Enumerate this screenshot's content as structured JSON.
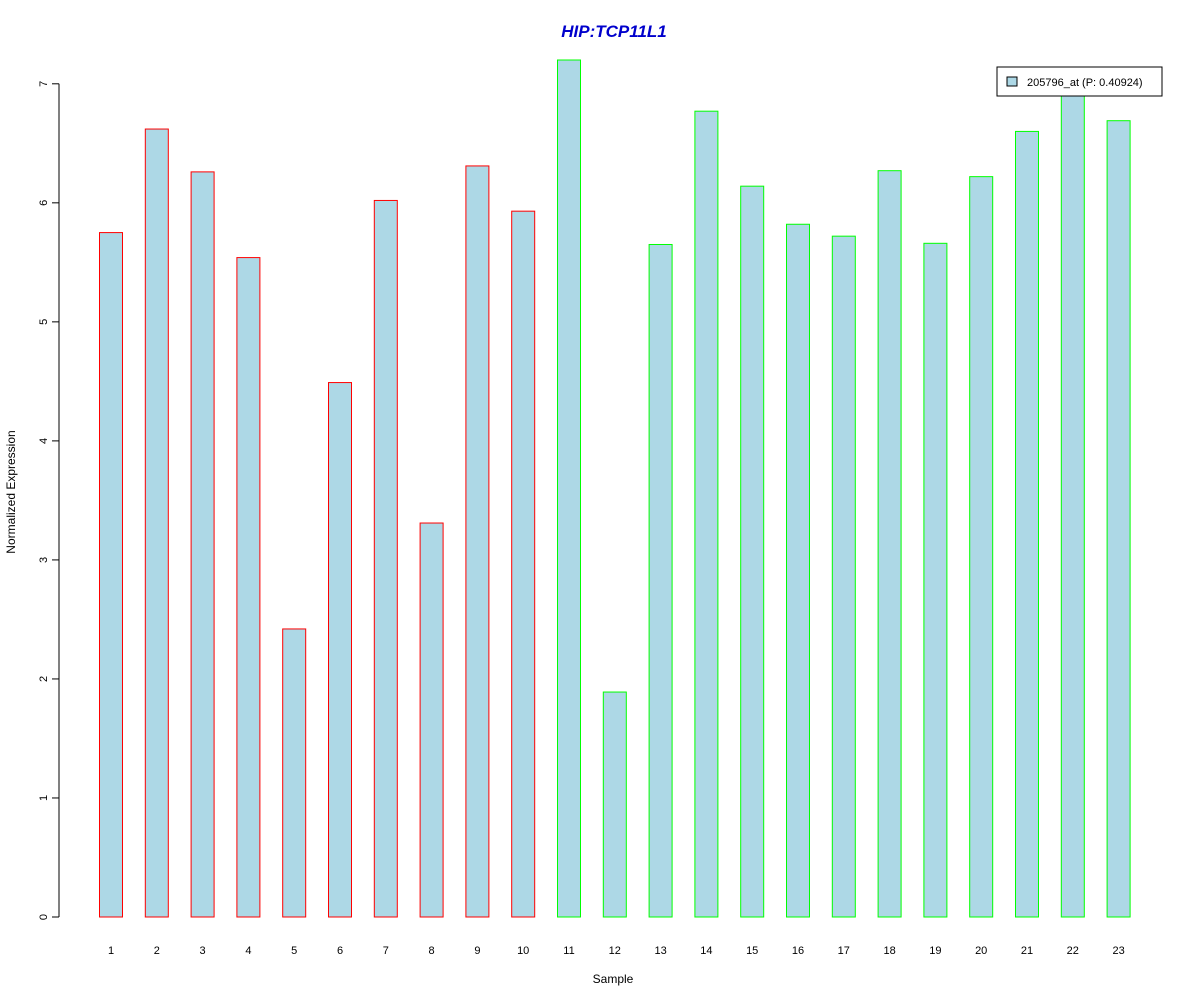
{
  "chart_data": {
    "type": "bar",
    "title": "HIP:TCP11L1",
    "xlabel": "Sample",
    "ylabel": "Normalized Expression",
    "ylim": [
      0,
      7.2
    ],
    "yticks": [
      "0",
      "1",
      "2",
      "3",
      "4",
      "5",
      "6",
      "7"
    ],
    "categories": [
      "1",
      "2",
      "3",
      "4",
      "5",
      "6",
      "7",
      "8",
      "9",
      "10",
      "11",
      "12",
      "13",
      "14",
      "15",
      "16",
      "17",
      "18",
      "19",
      "20",
      "21",
      "22",
      "23"
    ],
    "values": [
      5.75,
      6.62,
      6.26,
      5.54,
      2.42,
      4.49,
      6.02,
      3.31,
      6.31,
      5.93,
      7.2,
      1.89,
      5.65,
      6.77,
      6.14,
      5.82,
      5.72,
      6.27,
      5.66,
      6.22,
      6.6,
      6.9,
      6.69
    ],
    "groups": [
      "red",
      "red",
      "red",
      "red",
      "red",
      "red",
      "red",
      "red",
      "red",
      "red",
      "green",
      "green",
      "green",
      "green",
      "green",
      "green",
      "green",
      "green",
      "green",
      "green",
      "green",
      "green",
      "green"
    ],
    "legend": {
      "position": "top-right",
      "entries": [
        "205796_at (P: 0.40924)"
      ]
    },
    "grid": false,
    "colors": {
      "fill": "#add8e6",
      "border_red": "#ff0000",
      "border_green": "#00ff00",
      "title": "#0000cc",
      "axis": "#000000"
    }
  }
}
